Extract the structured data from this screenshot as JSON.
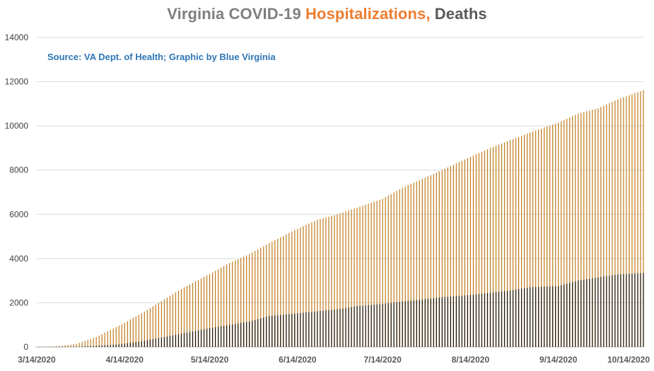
{
  "title": {
    "part1": "Virginia COVID-19 ",
    "part2": "Hospitalizations, ",
    "part3": "Deaths"
  },
  "source_note": "Source: VA Dept. of Health; Graphic by Blue Virginia",
  "colors": {
    "hospitalizations": "#c07a1a",
    "deaths": "#1a1208",
    "grid": "#d9d9d9",
    "axis": "#bfbfbf"
  },
  "chart_data": {
    "type": "bar",
    "title": "Virginia COVID-19 Hospitalizations, Deaths",
    "xlabel": "",
    "ylabel": "",
    "ylim": [
      0,
      14000
    ],
    "yticks": [
      0,
      2000,
      4000,
      6000,
      8000,
      10000,
      12000,
      14000
    ],
    "x_start": "3/14/2020",
    "x_end": "10/14/2020",
    "xtick_labels": [
      "3/14/2020",
      "4/14/2020",
      "5/14/2020",
      "6/14/2020",
      "7/14/2020",
      "8/14/2020",
      "9/14/2020",
      "10/14/2020"
    ],
    "grid": true,
    "legend": "none",
    "series": [
      {
        "name": "Hospitalizations",
        "points": [
          [
            "3/14/2020",
            5
          ],
          [
            "3/21/2020",
            30
          ],
          [
            "3/28/2020",
            140
          ],
          [
            "4/4/2020",
            450
          ],
          [
            "4/11/2020",
            900
          ],
          [
            "4/14/2020",
            1100
          ],
          [
            "4/21/2020",
            1600
          ],
          [
            "4/28/2020",
            2150
          ],
          [
            "5/5/2020",
            2700
          ],
          [
            "5/14/2020",
            3300
          ],
          [
            "5/21/2020",
            3800
          ],
          [
            "5/28/2020",
            4200
          ],
          [
            "6/4/2020",
            4700
          ],
          [
            "6/14/2020",
            5350
          ],
          [
            "6/21/2020",
            5750
          ],
          [
            "6/28/2020",
            6000
          ],
          [
            "7/5/2020",
            6300
          ],
          [
            "7/14/2020",
            6700
          ],
          [
            "7/21/2020",
            7200
          ],
          [
            "7/28/2020",
            7600
          ],
          [
            "8/4/2020",
            8000
          ],
          [
            "8/14/2020",
            8600
          ],
          [
            "8/21/2020",
            9000
          ],
          [
            "8/28/2020",
            9350
          ],
          [
            "9/4/2020",
            9700
          ],
          [
            "9/14/2020",
            10150
          ],
          [
            "9/21/2020",
            10550
          ],
          [
            "9/28/2020",
            10800
          ],
          [
            "10/5/2020",
            11200
          ],
          [
            "10/14/2020",
            11620
          ]
        ]
      },
      {
        "name": "Deaths",
        "points": [
          [
            "3/14/2020",
            2
          ],
          [
            "3/21/2020",
            5
          ],
          [
            "3/28/2020",
            15
          ],
          [
            "4/4/2020",
            50
          ],
          [
            "4/11/2020",
            110
          ],
          [
            "4/14/2020",
            150
          ],
          [
            "4/21/2020",
            280
          ],
          [
            "4/28/2020",
            450
          ],
          [
            "5/5/2020",
            630
          ],
          [
            "5/14/2020",
            850
          ],
          [
            "5/21/2020",
            1000
          ],
          [
            "5/28/2020",
            1150
          ],
          [
            "6/4/2020",
            1400
          ],
          [
            "6/14/2020",
            1520
          ],
          [
            "6/21/2020",
            1620
          ],
          [
            "6/28/2020",
            1700
          ],
          [
            "7/5/2020",
            1850
          ],
          [
            "7/14/2020",
            1950
          ],
          [
            "7/21/2020",
            2050
          ],
          [
            "7/28/2020",
            2150
          ],
          [
            "8/4/2020",
            2250
          ],
          [
            "8/14/2020",
            2350
          ],
          [
            "8/21/2020",
            2450
          ],
          [
            "8/28/2020",
            2550
          ],
          [
            "9/4/2020",
            2700
          ],
          [
            "9/14/2020",
            2750
          ],
          [
            "9/21/2020",
            3000
          ],
          [
            "9/28/2020",
            3150
          ],
          [
            "10/5/2020",
            3280
          ],
          [
            "10/14/2020",
            3350
          ]
        ]
      }
    ]
  }
}
